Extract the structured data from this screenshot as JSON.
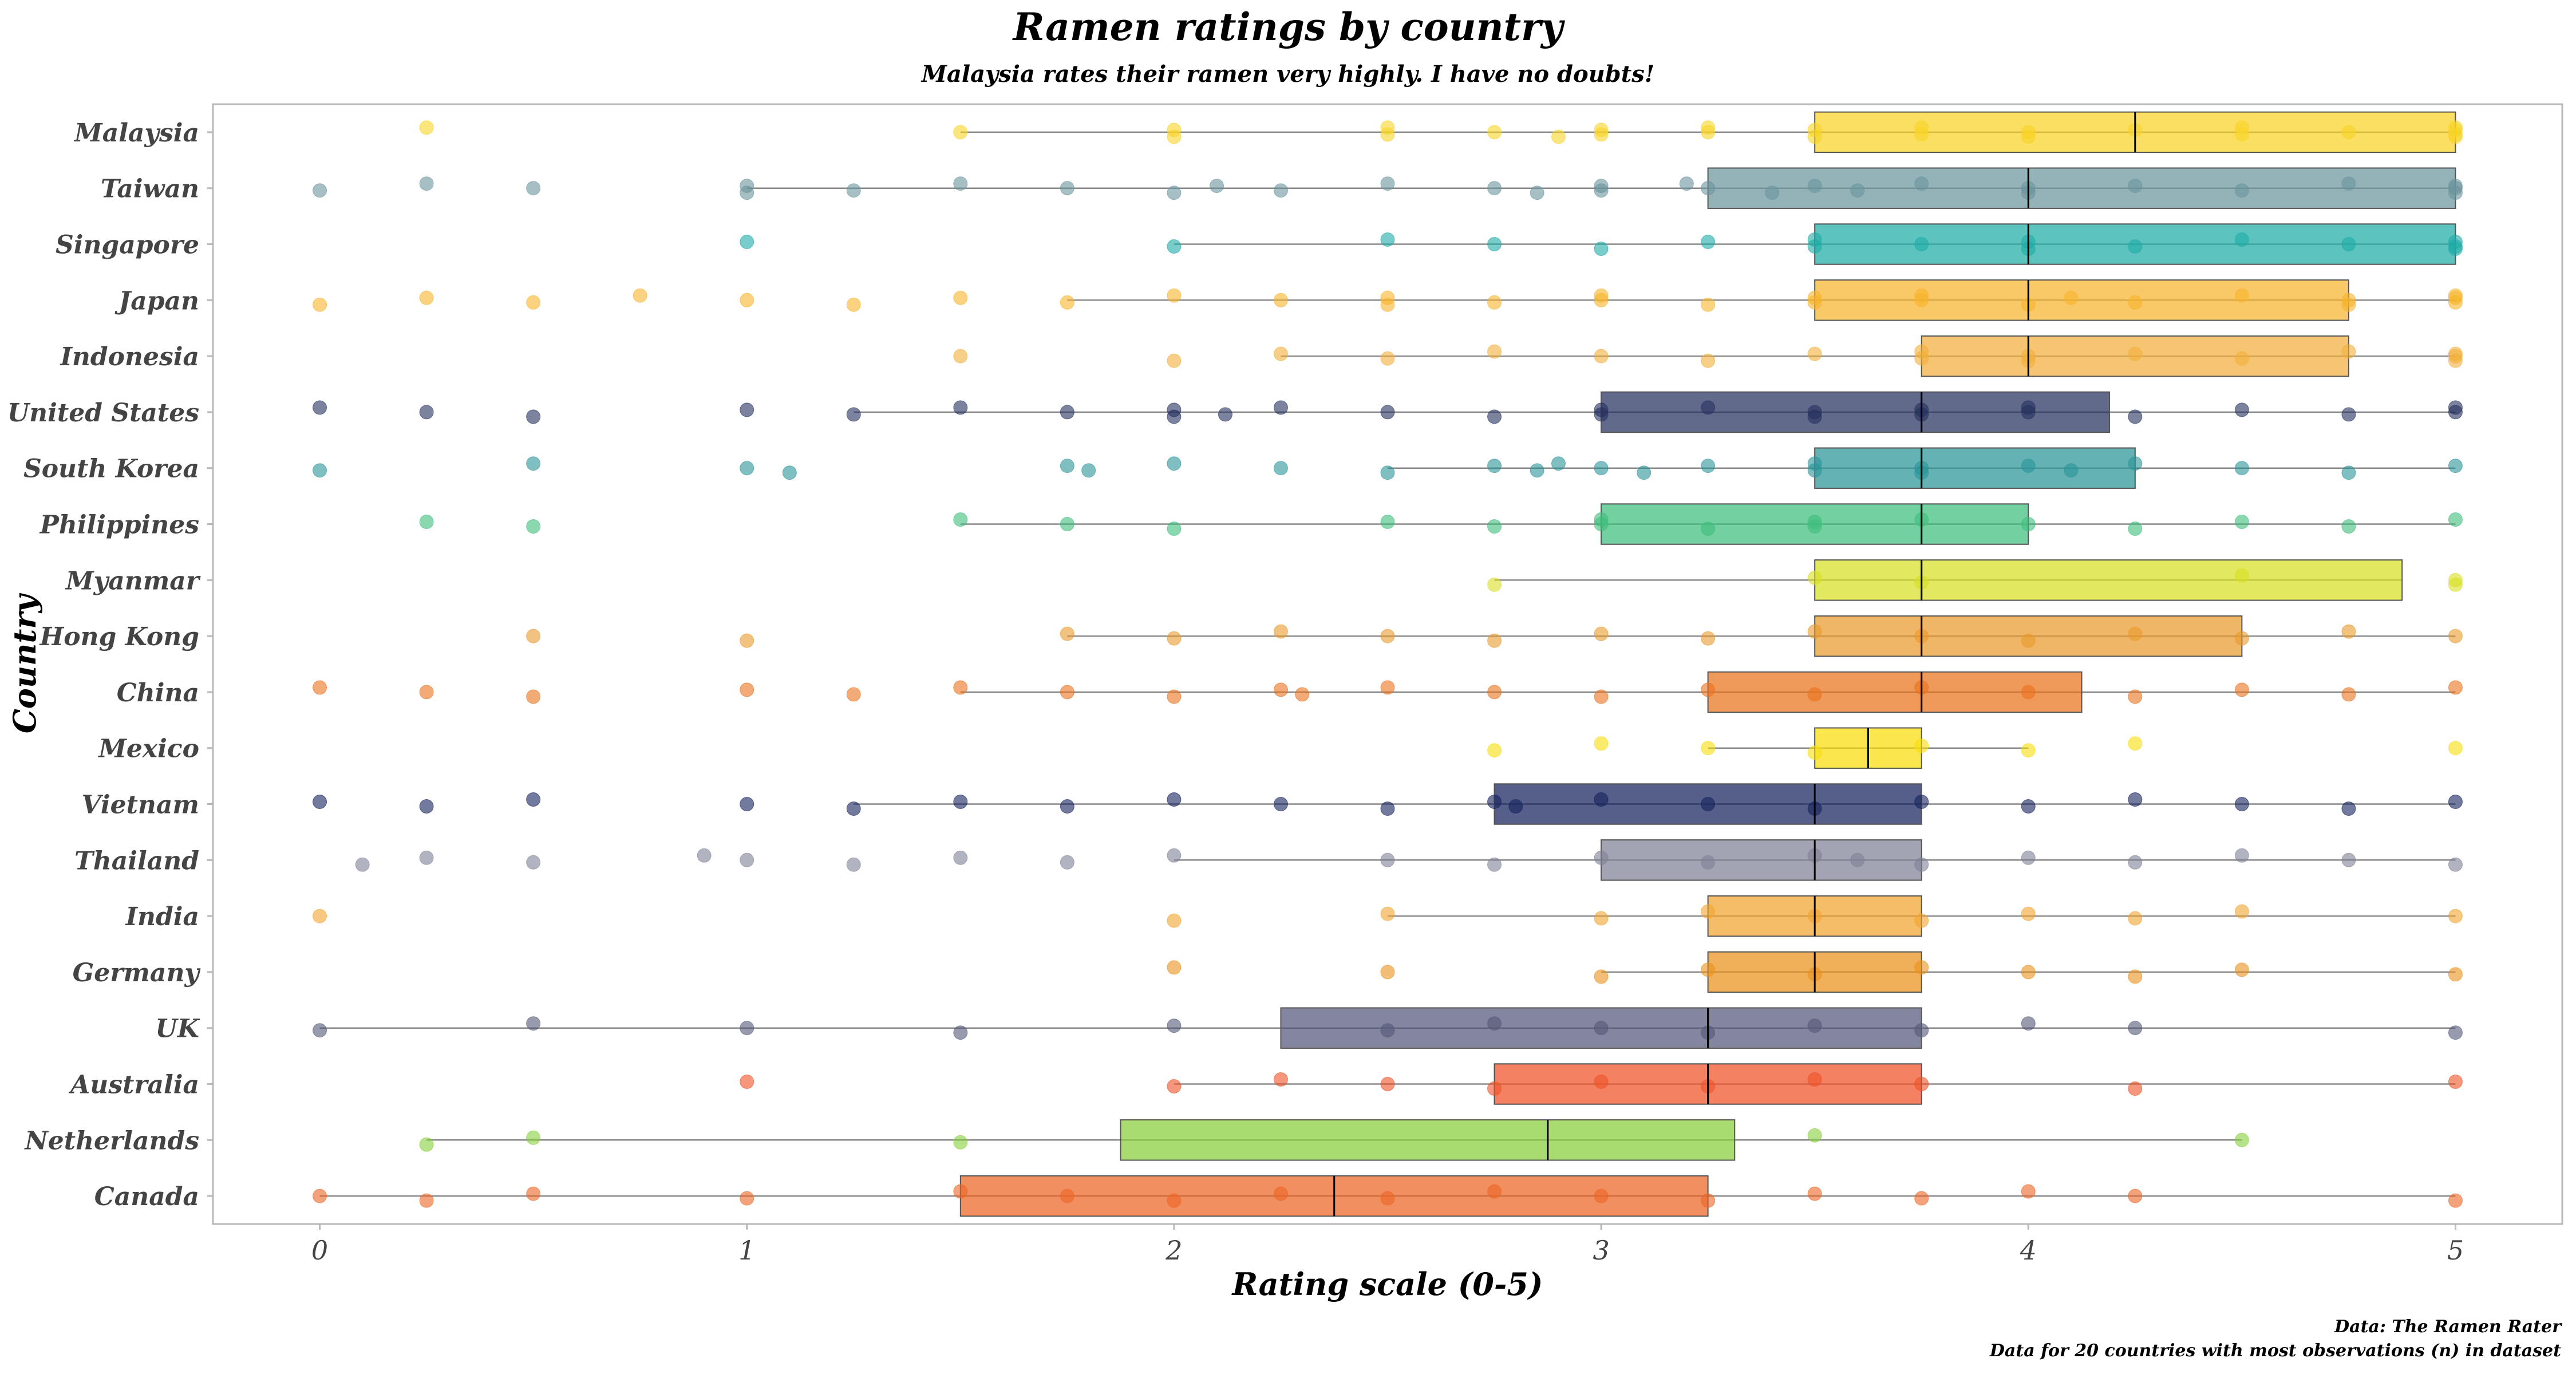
{
  "chart_data": {
    "type": "boxplot",
    "title": "Ramen ratings by country",
    "subtitle": "Malaysia rates their ramen very highly. I have no doubts!",
    "xlabel": "Rating scale (0-5)",
    "ylabel": "Country",
    "xlim": [
      -0.25,
      5.25
    ],
    "xticks": [
      0,
      1,
      2,
      3,
      4,
      5
    ],
    "grid": false,
    "caption": [
      "Data: The Ramen Rater",
      "Data for 20 countries with most observations (n) in dataset"
    ],
    "series": [
      {
        "name": "Malaysia",
        "color": "#F9D326",
        "min": 1.5,
        "q1": 3.5,
        "median": 4.25,
        "q3": 5.0,
        "max": 5.0,
        "points": [
          0.25,
          1.5,
          2.0,
          2.0,
          2.5,
          2.5,
          2.75,
          2.9,
          3.0,
          3.0,
          3.25,
          3.25,
          3.5,
          3.5,
          3.75,
          3.75,
          4.0,
          4.0,
          4.25,
          4.5,
          4.5,
          4.75,
          5.0,
          5.0,
          5.0,
          5.0
        ]
      },
      {
        "name": "Taiwan",
        "color": "#6A959D",
        "min": 1.0,
        "q1": 3.25,
        "median": 4.0,
        "q3": 5.0,
        "max": 5.0,
        "points": [
          0,
          0.25,
          0.5,
          1.0,
          1.0,
          1.25,
          1.5,
          1.75,
          2.0,
          2.1,
          2.25,
          2.5,
          2.75,
          2.85,
          3.0,
          3.0,
          3.2,
          3.25,
          3.4,
          3.5,
          3.6,
          3.75,
          4.0,
          4.0,
          4.25,
          4.5,
          4.75,
          5.0,
          5.0,
          5.0
        ]
      },
      {
        "name": "Singapore",
        "color": "#1EACA6",
        "min": 2.0,
        "q1": 3.5,
        "median": 4.0,
        "q3": 5.0,
        "max": 5.0,
        "points": [
          1.0,
          2.0,
          2.5,
          2.75,
          3.0,
          3.25,
          3.5,
          3.5,
          3.75,
          4.0,
          4.0,
          4.25,
          4.5,
          4.75,
          5.0,
          5.0,
          5.0
        ]
      },
      {
        "name": "Japan",
        "color": "#F6B42C",
        "min": 1.75,
        "q1": 3.5,
        "median": 4.0,
        "q3": 4.75,
        "max": 5.0,
        "points": [
          0,
          0.25,
          0.5,
          0.75,
          1.0,
          1.25,
          1.5,
          1.75,
          2.0,
          2.25,
          2.5,
          2.5,
          2.75,
          3.0,
          3.0,
          3.25,
          3.5,
          3.5,
          3.75,
          3.75,
          4.0,
          4.1,
          4.25,
          4.5,
          4.75,
          4.75,
          5.0,
          5.0,
          5.0
        ]
      },
      {
        "name": "Indonesia",
        "color": "#F2AF3A",
        "min": 2.25,
        "q1": 3.75,
        "median": 4.0,
        "q3": 4.75,
        "max": 5.0,
        "points": [
          1.5,
          2.0,
          2.25,
          2.5,
          2.75,
          3.0,
          3.25,
          3.5,
          3.75,
          3.75,
          4.0,
          4.0,
          4.25,
          4.5,
          4.75,
          5.0,
          5.0,
          5.0
        ]
      },
      {
        "name": "United States",
        "color": "#24305E",
        "min": 1.25,
        "q1": 3.0,
        "median": 3.75,
        "q3": 4.19,
        "max": 5.0,
        "points": [
          0,
          0.25,
          0.5,
          1.0,
          1.25,
          1.5,
          1.75,
          2.0,
          2.0,
          2.12,
          2.25,
          2.5,
          2.75,
          3.0,
          3.0,
          3.25,
          3.5,
          3.5,
          3.75,
          3.75,
          4.0,
          4.0,
          4.25,
          4.5,
          4.75,
          5.0,
          5.0
        ]
      },
      {
        "name": "South Korea",
        "color": "#2A9497",
        "min": 2.5,
        "q1": 3.5,
        "median": 3.75,
        "q3": 4.25,
        "max": 5.0,
        "points": [
          0,
          0.5,
          1.0,
          1.1,
          1.75,
          1.8,
          2.0,
          2.25,
          2.5,
          2.75,
          2.85,
          2.9,
          3.0,
          3.1,
          3.25,
          3.5,
          3.5,
          3.75,
          3.75,
          4.0,
          4.1,
          4.25,
          4.5,
          4.75,
          5.0
        ]
      },
      {
        "name": "Philippines",
        "color": "#3DBE7C",
        "min": 1.5,
        "q1": 3.0,
        "median": 3.75,
        "q3": 4.0,
        "max": 5.0,
        "points": [
          0.25,
          0.5,
          1.5,
          1.75,
          2.0,
          2.5,
          2.75,
          3.0,
          3.0,
          3.25,
          3.5,
          3.5,
          3.75,
          4.0,
          4.25,
          4.5,
          4.75,
          5.0
        ]
      },
      {
        "name": "Myanmar",
        "color": "#D7DF23",
        "min": 2.75,
        "q1": 3.5,
        "median": 3.75,
        "q3": 4.875,
        "max": 4.875,
        "points": [
          2.75,
          3.5,
          3.75,
          4.5,
          5.0,
          5.0
        ]
      },
      {
        "name": "Hong Kong",
        "color": "#EA9A2C",
        "min": 1.75,
        "q1": 3.5,
        "median": 3.75,
        "q3": 4.5,
        "max": 5.0,
        "points": [
          0.5,
          1.0,
          1.75,
          2.0,
          2.25,
          2.5,
          2.75,
          3.0,
          3.25,
          3.5,
          3.75,
          4.0,
          4.25,
          4.5,
          4.75,
          5.0
        ]
      },
      {
        "name": "China",
        "color": "#E9721C",
        "min": 1.5,
        "q1": 3.25,
        "median": 3.75,
        "q3": 4.125,
        "max": 5.0,
        "points": [
          0,
          0.25,
          0.5,
          1.0,
          1.25,
          1.5,
          1.75,
          2.0,
          2.25,
          2.3,
          2.5,
          2.75,
          3.0,
          3.25,
          3.5,
          3.75,
          4.0,
          4.25,
          4.5,
          4.75,
          5.0
        ]
      },
      {
        "name": "Mexico",
        "color": "#F9DD0A",
        "min": 3.25,
        "q1": 3.5,
        "median": 3.625,
        "q3": 3.75,
        "max": 4.0,
        "points": [
          2.75,
          3.0,
          3.25,
          3.5,
          3.75,
          4.0,
          4.25,
          5.0
        ]
      },
      {
        "name": "Vietnam",
        "color": "#14215C",
        "min": 1.25,
        "q1": 2.75,
        "median": 3.5,
        "q3": 3.75,
        "max": 5.0,
        "points": [
          0,
          0.25,
          0.5,
          1.0,
          1.25,
          1.5,
          1.75,
          2.0,
          2.25,
          2.5,
          2.75,
          2.8,
          3.0,
          3.25,
          3.5,
          3.75,
          4.0,
          4.25,
          4.5,
          4.75,
          5.0
        ]
      },
      {
        "name": "Thailand",
        "color": "#7E8196",
        "min": 2.0,
        "q1": 3.0,
        "median": 3.5,
        "q3": 3.75,
        "max": 5.0,
        "points": [
          0.1,
          0.25,
          0.5,
          0.9,
          1.0,
          1.25,
          1.5,
          1.75,
          2.0,
          2.5,
          2.75,
          3.0,
          3.25,
          3.5,
          3.6,
          3.75,
          4.0,
          4.25,
          4.5,
          4.75,
          5.0
        ]
      },
      {
        "name": "India",
        "color": "#F2A42E",
        "min": 2.5,
        "q1": 3.25,
        "median": 3.5,
        "q3": 3.75,
        "max": 5.0,
        "points": [
          0,
          2.0,
          2.5,
          3.0,
          3.25,
          3.5,
          3.75,
          4.0,
          4.25,
          4.5,
          5.0
        ]
      },
      {
        "name": "Germany",
        "color": "#EA911B",
        "min": 3.0,
        "q1": 3.25,
        "median": 3.5,
        "q3": 3.75,
        "max": 5.0,
        "points": [
          2.0,
          2.5,
          3.0,
          3.25,
          3.5,
          3.75,
          4.0,
          4.25,
          4.5,
          5.0
        ]
      },
      {
        "name": "UK",
        "color": "#535878",
        "min": 0,
        "q1": 2.25,
        "median": 3.25,
        "q3": 3.75,
        "max": 5.0,
        "points": [
          0,
          0.5,
          1.0,
          1.5,
          2.0,
          2.5,
          2.75,
          3.0,
          3.25,
          3.5,
          3.75,
          4.0,
          4.25,
          5.0
        ]
      },
      {
        "name": "Australia",
        "color": "#EE5126",
        "min": 2.0,
        "q1": 2.75,
        "median": 3.25,
        "q3": 3.75,
        "max": 5.0,
        "points": [
          1.0,
          2.0,
          2.25,
          2.5,
          2.75,
          3.0,
          3.25,
          3.5,
          3.75,
          4.25,
          5.0
        ]
      },
      {
        "name": "Netherlands",
        "color": "#86CF3A",
        "min": 0.25,
        "q1": 1.875,
        "median": 2.875,
        "q3": 3.3125,
        "max": 4.5,
        "points": [
          0.25,
          0.5,
          1.5,
          3.5,
          4.5
        ]
      },
      {
        "name": "Canada",
        "color": "#EC6423",
        "min": 0,
        "q1": 1.5,
        "median": 2.375,
        "q3": 3.25,
        "max": 5.0,
        "points": [
          0,
          0.25,
          0.5,
          1.0,
          1.5,
          1.75,
          2.0,
          2.25,
          2.5,
          2.75,
          3.0,
          3.25,
          3.5,
          3.75,
          4.0,
          4.25,
          5.0
        ]
      }
    ]
  }
}
